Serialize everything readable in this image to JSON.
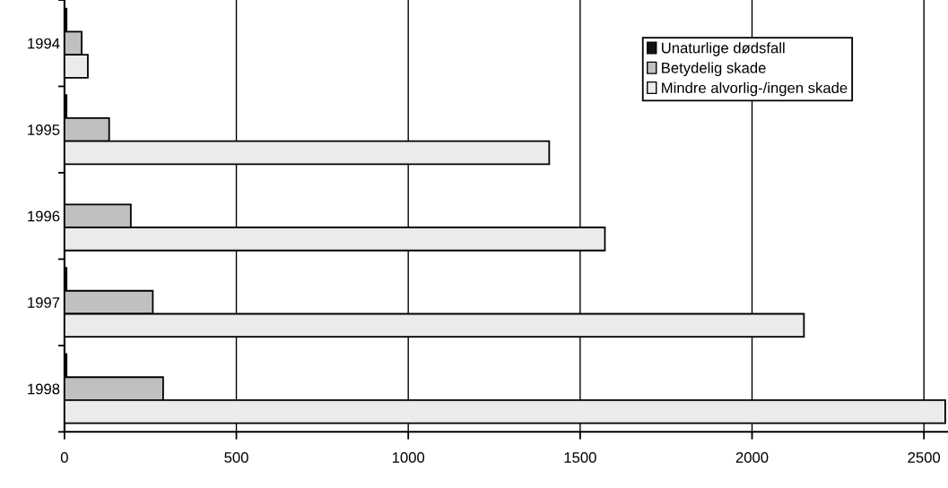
{
  "chart_data": {
    "type": "bar",
    "orientation": "horizontal",
    "categories": [
      "1994",
      "1995",
      "1996",
      "1997",
      "1998"
    ],
    "series": [
      {
        "name": "Unaturlige dødsfall",
        "color": "#111111",
        "values": [
          6,
          6,
          0,
          6,
          6
        ]
      },
      {
        "name": "Betydelig skade",
        "color": "#c0c0c0",
        "values": [
          50,
          130,
          193,
          257,
          287
        ]
      },
      {
        "name": "Mindre alvorlig-/ingen skade",
        "color": "#ebebeb",
        "values": [
          68,
          1410,
          1572,
          2151,
          2562
        ]
      }
    ],
    "xlim": [
      0,
      2570
    ],
    "xticks": [
      0,
      500,
      1000,
      1500,
      2000,
      2500
    ],
    "grid": "x",
    "legend": "top right"
  }
}
